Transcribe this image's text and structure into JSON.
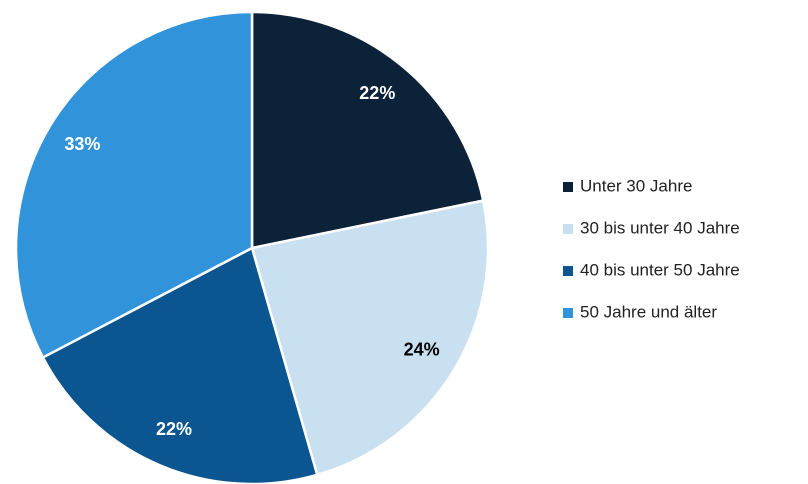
{
  "chart_data": {
    "type": "pie",
    "categories": [
      "Unter 30 Jahre",
      "30 bis unter 40 Jahre",
      "40 bis unter 50 Jahre",
      "50 Jahre und älter"
    ],
    "values": [
      22,
      24,
      22,
      33
    ],
    "value_labels": [
      "22%",
      "24%",
      "22%",
      "33%"
    ],
    "colors": [
      "#0b2238",
      "#c8e0ef",
      "#0b5690",
      "#3193d9"
    ],
    "legend": "right"
  }
}
